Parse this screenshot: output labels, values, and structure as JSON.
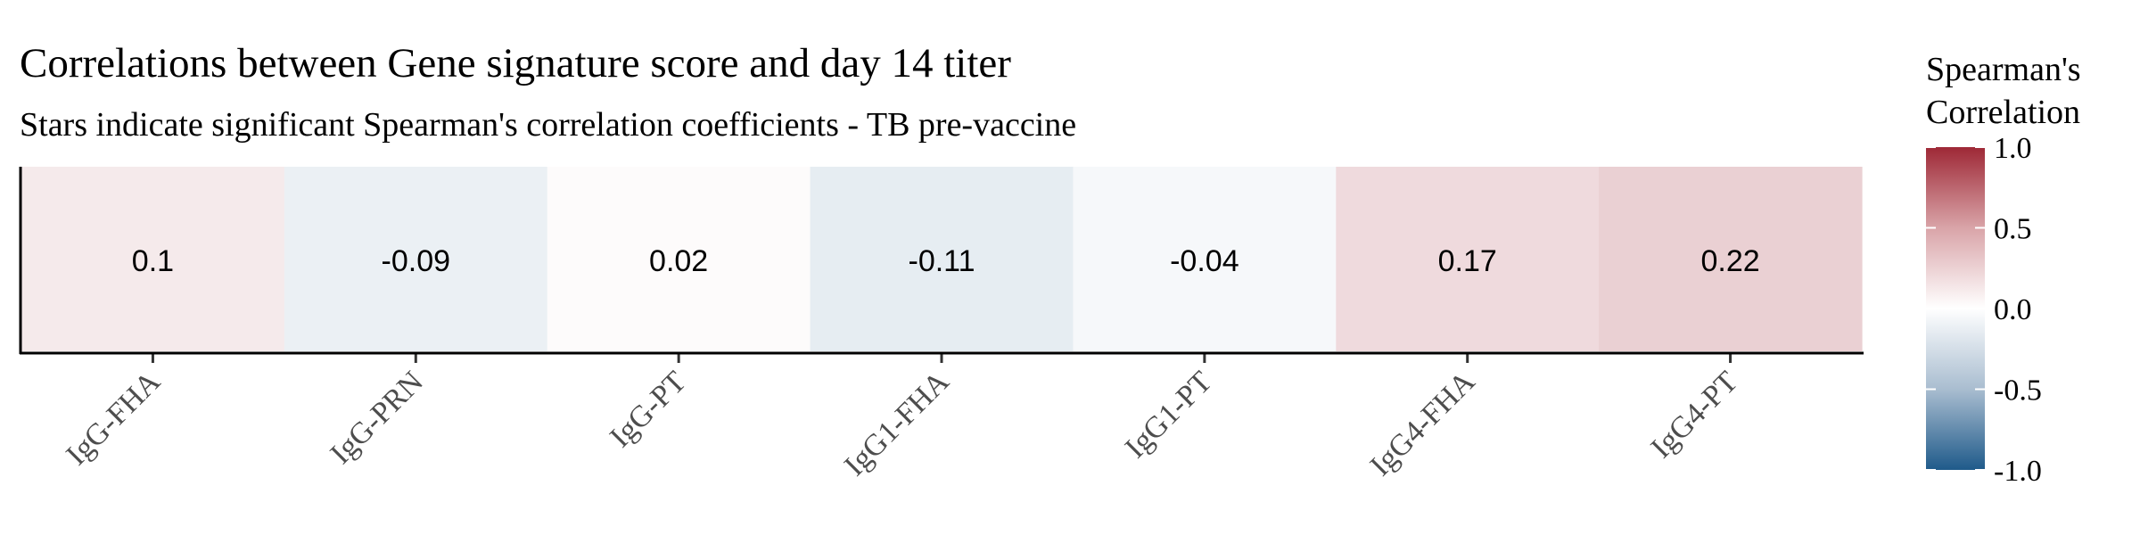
{
  "chart_data": {
    "type": "heatmap",
    "title": "Correlations between Gene signature score and day 14 titer",
    "subtitle": "Stars indicate significant Spearman's correlation coefficients - TB pre-vaccine",
    "categories": [
      "IgG-FHA",
      "IgG-PRN",
      "IgG-PT",
      "IgG1-FHA",
      "IgG1-PT",
      "IgG4-FHA",
      "IgG4-PT"
    ],
    "values": [
      0.1,
      -0.09,
      0.02,
      -0.11,
      -0.04,
      0.17,
      0.22
    ],
    "value_labels": [
      "0.1",
      "-0.09",
      "0.02",
      "-0.11",
      "-0.04",
      "0.17",
      "0.22"
    ],
    "legend": {
      "title_line1": "Spearman's",
      "title_line2": "Correlation",
      "placement": "right",
      "range": [
        -1.0,
        1.0
      ],
      "ticks": [
        1.0,
        0.5,
        0.0,
        -0.5,
        -1.0
      ],
      "tick_labels": [
        "1.0",
        "0.5",
        "0.0",
        "-0.5",
        "-1.0"
      ],
      "colors": {
        "low": "#1f5a8a",
        "mid": "#ffffff",
        "high": "#9e2836"
      }
    },
    "grid": false
  }
}
